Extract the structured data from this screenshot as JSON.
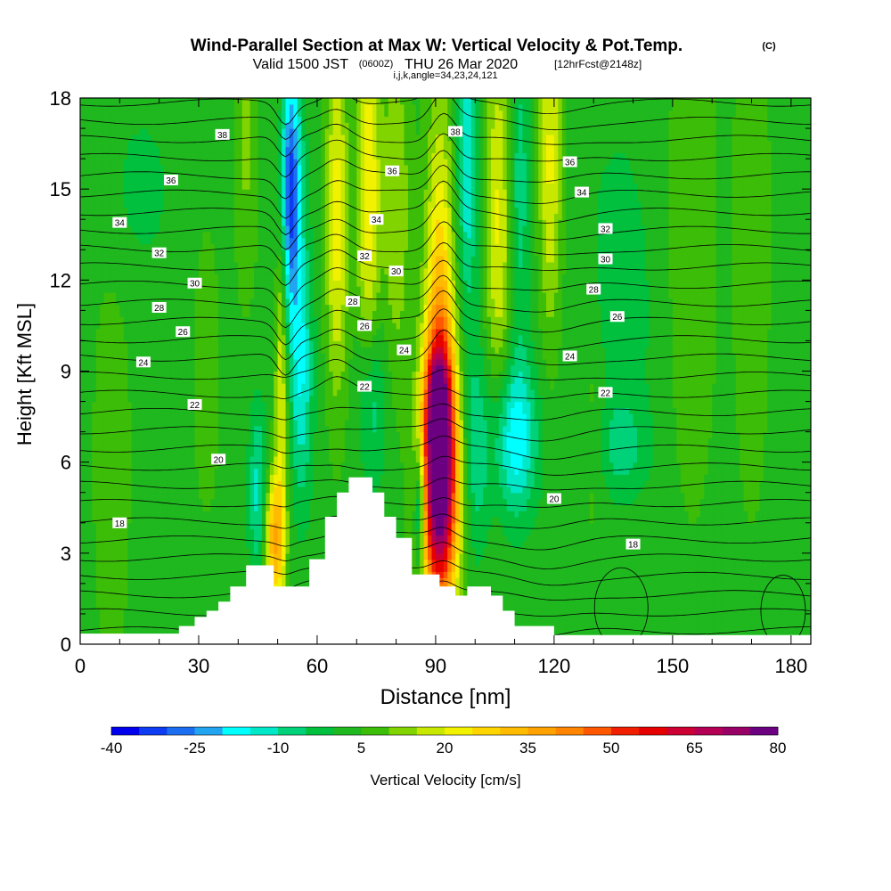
{
  "title": {
    "main": "Wind-Parallel Section at Max W: Vertical Velocity & Pot.Temp.",
    "copyright": "(C)",
    "valid_prefix": "Valid 1500 JST",
    "valid_utc": "(0600Z)",
    "valid_date": "THU 26 Mar 2020",
    "forecast": "[12hrFcst@2148z]",
    "ijk": "i,j,k,angle=34,23,24,121"
  },
  "chart_data": {
    "type": "heatmap",
    "xlabel": "Distance [nm]",
    "ylabel": "Height [Kft MSL]",
    "xlim": [
      0,
      185
    ],
    "ylim": [
      0,
      18
    ],
    "x_ticks": [
      0,
      30,
      60,
      90,
      120,
      150,
      180
    ],
    "y_ticks": [
      0,
      3,
      6,
      9,
      12,
      15,
      18
    ],
    "terrain": [
      [
        0,
        0.35
      ],
      [
        25,
        0.35
      ],
      [
        25,
        0.6
      ],
      [
        29,
        0.6
      ],
      [
        29,
        0.9
      ],
      [
        32,
        0.9
      ],
      [
        32,
        1.1
      ],
      [
        35,
        1.1
      ],
      [
        35,
        1.4
      ],
      [
        38,
        1.4
      ],
      [
        38,
        1.9
      ],
      [
        42,
        1.9
      ],
      [
        42,
        2.6
      ],
      [
        49,
        2.6
      ],
      [
        49,
        1.9
      ],
      [
        58,
        1.9
      ],
      [
        58,
        2.8
      ],
      [
        62,
        2.8
      ],
      [
        62,
        4.2
      ],
      [
        65,
        4.2
      ],
      [
        65,
        5.0
      ],
      [
        68,
        5.0
      ],
      [
        68,
        5.5
      ],
      [
        74,
        5.5
      ],
      [
        74,
        5.0
      ],
      [
        77,
        5.0
      ],
      [
        77,
        4.2
      ],
      [
        80,
        4.2
      ],
      [
        80,
        3.5
      ],
      [
        84,
        3.5
      ],
      [
        84,
        2.3
      ],
      [
        91,
        2.3
      ],
      [
        91,
        1.9
      ],
      [
        95,
        1.9
      ],
      [
        95,
        1.6
      ],
      [
        98,
        1.6
      ],
      [
        98,
        1.9
      ],
      [
        104,
        1.9
      ],
      [
        104,
        1.6
      ],
      [
        107,
        1.6
      ],
      [
        107,
        1.1
      ],
      [
        110,
        1.1
      ],
      [
        110,
        0.6
      ],
      [
        120,
        0.6
      ],
      [
        120,
        0.3
      ],
      [
        185,
        0.3
      ]
    ],
    "w_field": {
      "units": "cm/s",
      "background": 3,
      "features": [
        {
          "x": 91,
          "z": 5.5,
          "sx": 3.2,
          "sz": 3.0,
          "w": 82
        },
        {
          "x": 90.5,
          "z": 8.0,
          "sx": 2.0,
          "sz": 1.2,
          "w": 25
        },
        {
          "x": 91,
          "z": 11.5,
          "sx": 2.5,
          "sz": 4.5,
          "w": 24
        },
        {
          "x": 86,
          "z": 4.5,
          "sx": 1.0,
          "sz": 1.5,
          "w": -25
        },
        {
          "x": 49,
          "z": 3.5,
          "sx": 1.6,
          "sz": 1.5,
          "w": 30
        },
        {
          "x": 51,
          "z": 10.0,
          "sx": 1.2,
          "sz": 7.0,
          "w": 18
        },
        {
          "x": 45,
          "z": 5.0,
          "sx": 1.6,
          "sz": 2.0,
          "w": -15
        },
        {
          "x": 53,
          "z": 15.0,
          "sx": 2.0,
          "sz": 3.0,
          "w": -38
        },
        {
          "x": 56,
          "z": 9.0,
          "sx": 2.0,
          "sz": 3.0,
          "w": -18
        },
        {
          "x": 65,
          "z": 14.0,
          "sx": 2.0,
          "sz": 4.0,
          "w": 20
        },
        {
          "x": 73,
          "z": 15.0,
          "sx": 2.0,
          "sz": 4.0,
          "w": 22
        },
        {
          "x": 74,
          "z": 8.0,
          "sx": 2.5,
          "sz": 2.0,
          "w": -12
        },
        {
          "x": 80,
          "z": 14.5,
          "sx": 2.5,
          "sz": 4.0,
          "w": 12
        },
        {
          "x": 98,
          "z": 16.0,
          "sx": 1.8,
          "sz": 3.5,
          "w": -18
        },
        {
          "x": 106,
          "z": 14.0,
          "sx": 2.5,
          "sz": 4.5,
          "w": 18
        },
        {
          "x": 111,
          "z": 15.0,
          "sx": 2.0,
          "sz": 4.0,
          "w": -12
        },
        {
          "x": 119,
          "z": 16.0,
          "sx": 2.0,
          "sz": 4.0,
          "w": 18
        },
        {
          "x": 110,
          "z": 6.8,
          "sx": 4.0,
          "sz": 1.8,
          "w": -22
        },
        {
          "x": 137,
          "z": 6.5,
          "sx": 5.0,
          "sz": 1.0,
          "w": -8
        },
        {
          "x": 100,
          "z": 6.5,
          "sx": 2.5,
          "sz": 2.5,
          "w": -12
        },
        {
          "x": 136,
          "z": 11.0,
          "sx": 6.0,
          "sz": 4.0,
          "w": -7
        },
        {
          "x": 155,
          "z": 13.5,
          "sx": 4.0,
          "sz": 6.0,
          "w": 7
        },
        {
          "x": 170,
          "z": 13.5,
          "sx": 3.0,
          "sz": 6.0,
          "w": 7
        },
        {
          "x": 130,
          "z": 7.5,
          "sx": 2.5,
          "sz": 3.0,
          "w": 6
        },
        {
          "x": 15,
          "z": 15.0,
          "sx": 6.0,
          "sz": 2.0,
          "w": -5
        },
        {
          "x": 8,
          "z": 6.0,
          "sx": 4.0,
          "sz": 6.0,
          "w": 4
        },
        {
          "x": 42,
          "z": 16.5,
          "sx": 2.0,
          "sz": 3.5,
          "w": 8
        },
        {
          "x": 32,
          "z": 9.0,
          "sx": 2.5,
          "sz": 3.5,
          "w": 5
        }
      ]
    },
    "theta_contour_labels": [
      {
        "x": 36,
        "z": 16.8,
        "text": "38"
      },
      {
        "x": 23,
        "z": 15.3,
        "text": "36"
      },
      {
        "x": 10,
        "z": 13.9,
        "text": "34"
      },
      {
        "x": 20,
        "z": 12.9,
        "text": "32"
      },
      {
        "x": 29,
        "z": 11.9,
        "text": "30"
      },
      {
        "x": 20,
        "z": 11.1,
        "text": "28"
      },
      {
        "x": 26,
        "z": 10.3,
        "text": "26"
      },
      {
        "x": 16,
        "z": 9.3,
        "text": "24"
      },
      {
        "x": 29,
        "z": 7.9,
        "text": "22"
      },
      {
        "x": 35,
        "z": 6.1,
        "text": "20"
      },
      {
        "x": 10,
        "z": 4.0,
        "text": "18"
      },
      {
        "x": 95,
        "z": 16.9,
        "text": "38"
      },
      {
        "x": 79,
        "z": 15.6,
        "text": "36"
      },
      {
        "x": 75,
        "z": 14.0,
        "text": "34"
      },
      {
        "x": 72,
        "z": 12.8,
        "text": "32"
      },
      {
        "x": 80,
        "z": 12.3,
        "text": "30"
      },
      {
        "x": 69,
        "z": 11.3,
        "text": "28"
      },
      {
        "x": 72,
        "z": 10.5,
        "text": "26"
      },
      {
        "x": 82,
        "z": 9.7,
        "text": "24"
      },
      {
        "x": 72,
        "z": 8.5,
        "text": "22"
      },
      {
        "x": 124,
        "z": 15.9,
        "text": "36"
      },
      {
        "x": 127,
        "z": 14.9,
        "text": "34"
      },
      {
        "x": 133,
        "z": 13.7,
        "text": "32"
      },
      {
        "x": 133,
        "z": 12.7,
        "text": "30"
      },
      {
        "x": 130,
        "z": 11.7,
        "text": "28"
      },
      {
        "x": 136,
        "z": 10.8,
        "text": "26"
      },
      {
        "x": 124,
        "z": 9.5,
        "text": "24"
      },
      {
        "x": 133,
        "z": 8.3,
        "text": "22"
      },
      {
        "x": 120,
        "z": 4.8,
        "text": "20"
      },
      {
        "x": 140,
        "z": 3.3,
        "text": "18"
      }
    ],
    "colorbar": {
      "label": "Vertical Velocity [cm/s]",
      "tick_labels": [
        "-40",
        "-25",
        "-10",
        "5",
        "20",
        "35",
        "50",
        "65",
        "80"
      ],
      "min": -40,
      "step": 5,
      "colors": [
        "#0000ee",
        "#0d3cf2",
        "#1c6ef0",
        "#22a4f0",
        "#00ffff",
        "#00e8c8",
        "#00d27a",
        "#00c03e",
        "#1fb81f",
        "#3cbd08",
        "#82d400",
        "#c8e800",
        "#f2f200",
        "#ffd500",
        "#ffbb00",
        "#ffa200",
        "#ff8400",
        "#ff5600",
        "#f21e00",
        "#e60000",
        "#cc0033",
        "#b30055",
        "#990066",
        "#6b0080"
      ]
    }
  }
}
